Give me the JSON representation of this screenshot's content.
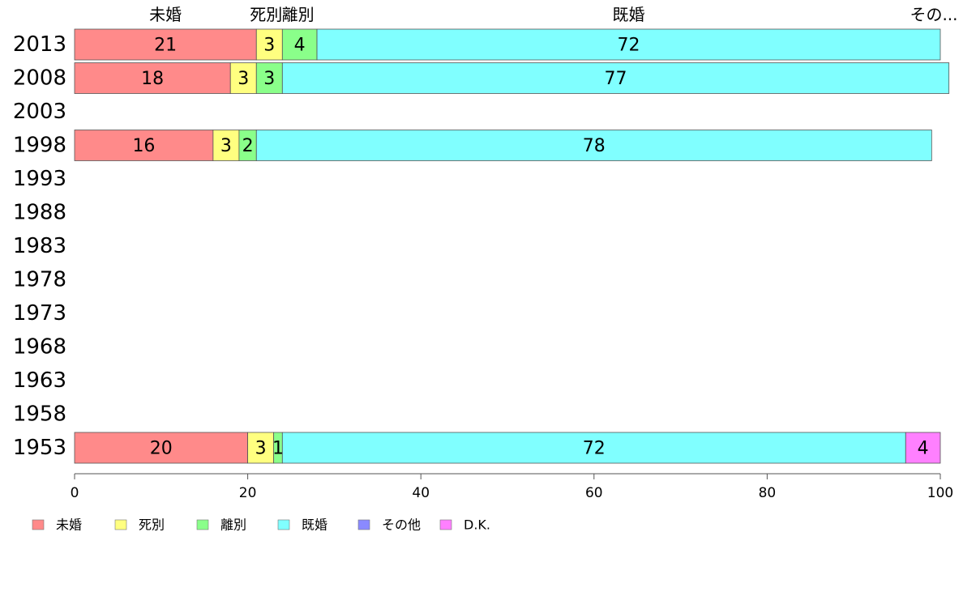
{
  "chart_data": {
    "type": "bar",
    "orientation": "horizontal",
    "stacked": true,
    "categories": [
      "2013",
      "2008",
      "2003",
      "1998",
      "1993",
      "1988",
      "1983",
      "1978",
      "1973",
      "1968",
      "1963",
      "1958",
      "1953"
    ],
    "series": [
      {
        "name": "未婚",
        "color": "#ff8a8a",
        "values": [
          21,
          18,
          null,
          16,
          null,
          null,
          null,
          null,
          null,
          null,
          null,
          null,
          20
        ]
      },
      {
        "name": "死別",
        "color": "#ffff80",
        "values": [
          3,
          3,
          null,
          3,
          null,
          null,
          null,
          null,
          null,
          null,
          null,
          null,
          3
        ]
      },
      {
        "name": "離別",
        "color": "#8aff8a",
        "values": [
          4,
          3,
          null,
          2,
          null,
          null,
          null,
          null,
          null,
          null,
          null,
          null,
          1
        ]
      },
      {
        "name": "既婚",
        "color": "#80ffff",
        "values": [
          72,
          77,
          null,
          78,
          null,
          null,
          null,
          null,
          null,
          null,
          null,
          null,
          72
        ]
      },
      {
        "name": "その他",
        "color": "#8a8aff",
        "values": [
          0,
          0,
          null,
          0,
          null,
          null,
          null,
          null,
          null,
          null,
          null,
          null,
          0
        ]
      },
      {
        "name": "D.K.",
        "color": "#ff80ff",
        "values": [
          0,
          0,
          null,
          0,
          null,
          null,
          null,
          null,
          null,
          null,
          null,
          null,
          4
        ]
      }
    ],
    "segment_labels": [
      [
        "21",
        "3",
        "4",
        "72",
        "",
        ""
      ],
      [
        "18",
        "3",
        "3",
        "77",
        "",
        ""
      ],
      [
        "",
        "",
        "",
        "",
        "",
        ""
      ],
      [
        "16",
        "3",
        "2",
        "78",
        "",
        ""
      ],
      [
        "",
        "",
        "",
        "",
        "",
        ""
      ],
      [
        "",
        "",
        "",
        "",
        "",
        ""
      ],
      [
        "",
        "",
        "",
        "",
        "",
        ""
      ],
      [
        "",
        "",
        "",
        "",
        "",
        ""
      ],
      [
        "",
        "",
        "",
        "",
        "",
        ""
      ],
      [
        "",
        "",
        "",
        "",
        "",
        ""
      ],
      [
        "",
        "",
        "",
        "",
        "",
        ""
      ],
      [
        "",
        "",
        "",
        "",
        "",
        ""
      ],
      [
        "20",
        "3",
        "1",
        "72",
        "",
        "4"
      ]
    ],
    "top_labels": [
      "未婚",
      "死別",
      "離別",
      "既婚",
      "その..."
    ],
    "xlim": [
      0,
      100
    ],
    "xticks": [
      "0",
      "20",
      "40",
      "60",
      "80",
      "100"
    ],
    "grid": false,
    "legend_position": "bottom-left"
  }
}
